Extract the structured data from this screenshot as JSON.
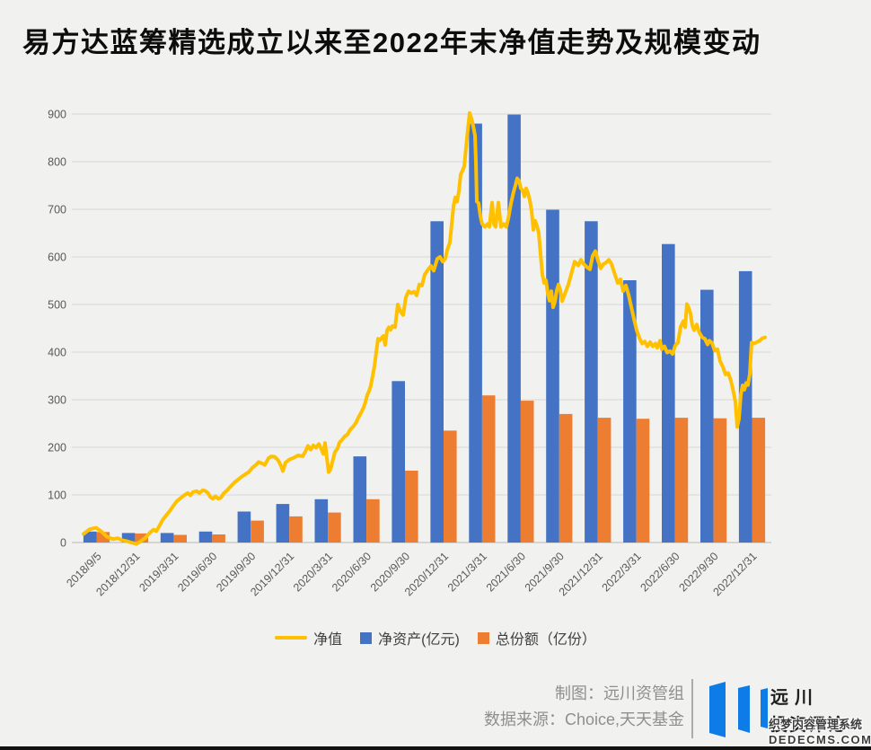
{
  "page": {
    "title": "易方达蓝筹精选成立以来至2022年末净值走势及规模变动",
    "background": "#f1f1ef"
  },
  "chart_data": {
    "type": "bar",
    "subtype": "combo-bar-line",
    "title": "易方达蓝筹精选成立以来至2022年末净值走势及规模变动",
    "xlabel": "",
    "ylabel": "",
    "ylim": [
      0,
      900
    ],
    "ytick_interval": 100,
    "grid": true,
    "legend_position": "bottom",
    "categories": [
      "2018/9/5",
      "2018/12/31",
      "2019/3/31",
      "2019/6/30",
      "2019/9/30",
      "2019/12/31",
      "2020/3/31",
      "2020/6/30",
      "2020/9/30",
      "2020/12/31",
      "2021/3/31",
      "2021/6/30",
      "2021/9/30",
      "2021/12/31",
      "2022/3/31",
      "2022/6/30",
      "2022/9/30",
      "2022/12/31"
    ],
    "series": [
      {
        "name": "净值",
        "type": "line",
        "color": "#FFC000",
        "points": [
          [
            93,
            18
          ],
          [
            100,
            28
          ],
          [
            107,
            31
          ],
          [
            113,
            23
          ],
          [
            119,
            12
          ],
          [
            126,
            7
          ],
          [
            131,
            9
          ],
          [
            136,
            5
          ],
          [
            141,
            3
          ],
          [
            146,
            0
          ],
          [
            152,
            -3
          ],
          [
            157,
            3
          ],
          [
            162,
            10
          ],
          [
            167,
            21
          ],
          [
            171,
            27
          ],
          [
            174,
            24
          ],
          [
            177,
            33
          ],
          [
            181,
            47
          ],
          [
            185,
            57
          ],
          [
            189,
            66
          ],
          [
            193,
            77
          ],
          [
            197,
            87
          ],
          [
            201,
            93
          ],
          [
            205,
            99
          ],
          [
            209,
            104
          ],
          [
            212,
            99
          ],
          [
            215,
            106
          ],
          [
            219,
            108
          ],
          [
            222,
            104
          ],
          [
            226,
            110
          ],
          [
            229,
            108
          ],
          [
            232,
            103
          ],
          [
            234,
            96
          ],
          [
            237,
            92
          ],
          [
            240,
            97
          ],
          [
            243,
            92
          ],
          [
            246,
            94
          ],
          [
            249,
            103
          ],
          [
            252,
            108
          ],
          [
            255,
            114
          ],
          [
            258,
            120
          ],
          [
            261,
            126
          ],
          [
            265,
            132
          ],
          [
            269,
            138
          ],
          [
            273,
            143
          ],
          [
            277,
            148
          ],
          [
            281,
            157
          ],
          [
            285,
            163
          ],
          [
            288,
            169
          ],
          [
            292,
            166
          ],
          [
            295,
            163
          ],
          [
            299,
            177
          ],
          [
            302,
            181
          ],
          [
            306,
            180
          ],
          [
            310,
            172
          ],
          [
            313,
            161
          ],
          [
            315,
            150
          ],
          [
            318,
            168
          ],
          [
            322,
            174
          ],
          [
            327,
            178
          ],
          [
            332,
            183
          ],
          [
            337,
            181
          ],
          [
            340,
            191
          ],
          [
            343,
            203
          ],
          [
            346,
            195
          ],
          [
            349,
            204
          ],
          [
            352,
            199
          ],
          [
            355,
            207
          ],
          [
            358,
            196
          ],
          [
            360,
            186
          ],
          [
            362,
            209
          ],
          [
            364,
            178
          ],
          [
            366,
            148
          ],
          [
            368,
            153
          ],
          [
            370,
            168
          ],
          [
            373,
            190
          ],
          [
            376,
            198
          ],
          [
            378,
            210
          ],
          [
            381,
            216
          ],
          [
            384,
            223
          ],
          [
            387,
            227
          ],
          [
            390,
            237
          ],
          [
            393,
            243
          ],
          [
            396,
            250
          ],
          [
            399,
            262
          ],
          [
            402,
            272
          ],
          [
            405,
            284
          ],
          [
            407,
            295
          ],
          [
            409,
            310
          ],
          [
            411,
            318
          ],
          [
            413,
            330
          ],
          [
            415,
            350
          ],
          [
            417,
            370
          ],
          [
            419,
            400
          ],
          [
            421,
            428
          ],
          [
            423,
            425
          ],
          [
            425,
            430
          ],
          [
            427,
            434
          ],
          [
            429,
            415
          ],
          [
            431,
            445
          ],
          [
            433,
            452
          ],
          [
            435,
            447
          ],
          [
            437,
            455
          ],
          [
            440,
            452
          ],
          [
            443,
            500
          ],
          [
            446,
            485
          ],
          [
            449,
            478
          ],
          [
            452,
            515
          ],
          [
            455,
            528
          ],
          [
            458,
            524
          ],
          [
            461,
            527
          ],
          [
            464,
            519
          ],
          [
            467,
            542
          ],
          [
            470,
            540
          ],
          [
            473,
            563
          ],
          [
            477,
            574
          ],
          [
            480,
            581
          ],
          [
            483,
            571
          ],
          [
            487,
            596
          ],
          [
            490,
            600
          ],
          [
            493,
            590
          ],
          [
            496,
            596
          ],
          [
            498,
            614
          ],
          [
            501,
            630
          ],
          [
            503,
            668
          ],
          [
            505,
            706
          ],
          [
            507,
            725
          ],
          [
            509,
            716
          ],
          [
            511,
            737
          ],
          [
            513,
            773
          ],
          [
            515,
            781
          ],
          [
            517,
            790
          ],
          [
            519,
            829
          ],
          [
            521,
            867
          ],
          [
            523,
            902
          ],
          [
            525,
            891
          ],
          [
            527,
            875
          ],
          [
            529,
            855
          ],
          [
            530,
            800
          ],
          [
            531,
            716
          ],
          [
            533,
            713
          ],
          [
            535,
            685
          ],
          [
            537,
            669
          ],
          [
            540,
            663
          ],
          [
            543,
            669
          ],
          [
            545,
            663
          ],
          [
            548,
            714
          ],
          [
            550,
            669
          ],
          [
            552,
            663
          ],
          [
            555,
            714
          ],
          [
            558,
            663
          ],
          [
            561,
            669
          ],
          [
            564,
            663
          ],
          [
            566,
            680
          ],
          [
            569,
            712
          ],
          [
            572,
            737
          ],
          [
            574,
            750
          ],
          [
            576,
            765
          ],
          [
            578,
            760
          ],
          [
            580,
            744
          ],
          [
            582,
            740
          ],
          [
            584,
            727
          ],
          [
            586,
            744
          ],
          [
            588,
            734
          ],
          [
            590,
            719
          ],
          [
            592,
            697
          ],
          [
            594,
            657
          ],
          [
            596,
            676
          ],
          [
            598,
            665
          ],
          [
            600,
            650
          ],
          [
            602,
            606
          ],
          [
            604,
            563
          ],
          [
            606,
            545
          ],
          [
            608,
            551
          ],
          [
            610,
            524
          ],
          [
            612,
            508
          ],
          [
            614,
            528
          ],
          [
            616,
            494
          ],
          [
            618,
            506
          ],
          [
            620,
            529
          ],
          [
            622,
            542
          ],
          [
            624,
            530
          ],
          [
            626,
            507
          ],
          [
            628,
            517
          ],
          [
            630,
            527
          ],
          [
            633,
            542
          ],
          [
            636,
            563
          ],
          [
            640,
            590
          ],
          [
            644,
            582
          ],
          [
            647,
            594
          ],
          [
            650,
            585
          ],
          [
            654,
            578
          ],
          [
            657,
            574
          ],
          [
            660,
            602
          ],
          [
            663,
            612
          ],
          [
            666,
            592
          ],
          [
            669,
            576
          ],
          [
            672,
            585
          ],
          [
            675,
            588
          ],
          [
            678,
            594
          ],
          [
            681,
            585
          ],
          [
            685,
            562
          ],
          [
            688,
            545
          ],
          [
            691,
            553
          ],
          [
            694,
            528
          ],
          [
            697,
            540
          ],
          [
            700,
            521
          ],
          [
            703,
            495
          ],
          [
            706,
            470
          ],
          [
            709,
            446
          ],
          [
            712,
            430
          ],
          [
            715,
            418
          ],
          [
            718,
            422
          ],
          [
            721,
            412
          ],
          [
            724,
            421
          ],
          [
            727,
            412
          ],
          [
            730,
            418
          ],
          [
            732,
            409
          ],
          [
            735,
            424
          ],
          [
            737,
            406
          ],
          [
            740,
            412
          ],
          [
            743,
            399
          ],
          [
            746,
            402
          ],
          [
            749,
            396
          ],
          [
            752,
            414
          ],
          [
            755,
            420
          ],
          [
            758,
            453
          ],
          [
            761,
            465
          ],
          [
            763,
            452
          ],
          [
            765,
            501
          ],
          [
            767,
            493
          ],
          [
            769,
            481
          ],
          [
            771,
            456
          ],
          [
            773,
            446
          ],
          [
            776,
            458
          ],
          [
            779,
            440
          ],
          [
            782,
            431
          ],
          [
            785,
            428
          ],
          [
            788,
            416
          ],
          [
            790,
            424
          ],
          [
            793,
            419
          ],
          [
            796,
            403
          ],
          [
            799,
            406
          ],
          [
            802,
            381
          ],
          [
            805,
            369
          ],
          [
            808,
            353
          ],
          [
            811,
            356
          ],
          [
            814,
            340
          ],
          [
            817,
            315
          ],
          [
            819,
            295
          ],
          [
            821,
            243
          ],
          [
            823,
            260
          ],
          [
            825,
            310
          ],
          [
            827,
            330
          ],
          [
            829,
            321
          ],
          [
            831,
            335
          ],
          [
            833,
            331
          ],
          [
            835,
            354
          ],
          [
            837,
            420
          ],
          [
            840,
            418
          ],
          [
            843,
            421
          ],
          [
            846,
            424
          ],
          [
            849,
            429
          ],
          [
            852,
            431
          ]
        ]
      },
      {
        "name": "净资产(亿元)",
        "type": "bar",
        "color": "#4472C4",
        "values": [
          23,
          20,
          20,
          23,
          65,
          81,
          91,
          181,
          339,
          675,
          880,
          899,
          699,
          675,
          551,
          627,
          531,
          570
        ]
      },
      {
        "name": "总份额（亿份）",
        "type": "bar",
        "color": "#ED7D31",
        "values": [
          22,
          19,
          16,
          17,
          46,
          55,
          63,
          91,
          151,
          235,
          309,
          298,
          270,
          262,
          260,
          262,
          261,
          262
        ]
      }
    ],
    "axis_text_color": "#595959",
    "gridline_color": "#dddddd",
    "axisline_color": "#c2c2c2"
  },
  "footer": {
    "credit_line1": "制图：远川资管组",
    "credit_line2": "数据来源：Choice,天天基金",
    "logo_line1": "远川",
    "logo_line2": "投资评论",
    "logo_color": "#0d7ce6",
    "watermark_line1": "织梦内容管理系统",
    "watermark_line2": "DEDECMS.COM"
  }
}
